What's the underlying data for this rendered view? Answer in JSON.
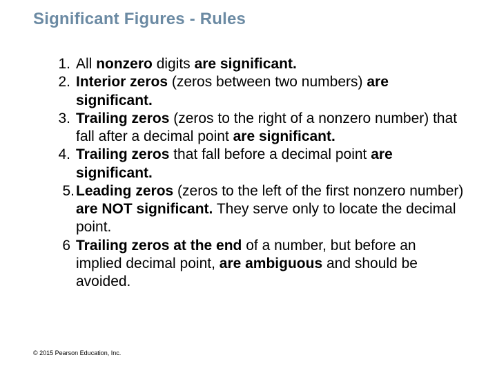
{
  "colors": {
    "title_color": "#6b8aa3",
    "body_color": "#000000",
    "background": "#ffffff"
  },
  "typography": {
    "title_fontsize": 24,
    "body_fontsize": 21,
    "footer_fontsize": 9,
    "font_family": "Arial"
  },
  "title": "Significant Figures - Rules",
  "rules": [
    {
      "n": "1.",
      "pre": "All ",
      "bold1": "nonzero",
      "mid": " digits ",
      "bold2": "are significant.",
      "post": ""
    },
    {
      "n": "2.",
      "pre": "",
      "bold1": "Interior zeros",
      "mid": " (zeros between two numbers) ",
      "bold2": "are significant.",
      "post": ""
    },
    {
      "n": "3.",
      "pre": "",
      "bold1": "Trailing zeros",
      "mid": " (zeros to the right of a nonzero number) that fall after a decimal point ",
      "bold2": "are significant.",
      "post": ""
    },
    {
      "n": "4.",
      "pre": "",
      "bold1": "Trailing zeros",
      "mid": " that fall before a decimal point ",
      "bold2": "are significant.",
      "post": ""
    },
    {
      "n": "5.",
      "pre": "",
      "bold1": "Leading zeros",
      "mid": " (zeros to the left of the first nonzero number) ",
      "bold2": "are NOT significant.",
      "post": " They serve only to locate the decimal point."
    },
    {
      "n": "6",
      "pre": "",
      "bold1": "Trailing zeros at the end",
      "mid": " of a number, but before an implied decimal point, ",
      "bold2": "are ambiguous",
      "post": " and should be avoided."
    }
  ],
  "footer": "© 2015 Pearson Education, Inc."
}
